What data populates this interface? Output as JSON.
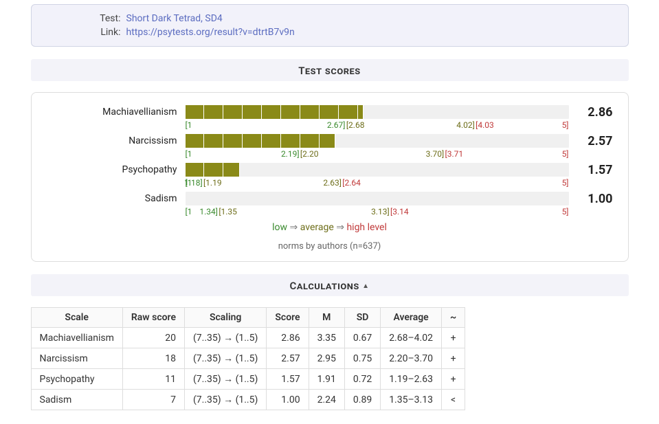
{
  "info": {
    "test_label": "Test:",
    "test_name": "Short Dark Tetrad, SD4",
    "link_label": "Link:",
    "link_url": "https://psytests.org/result?v=dtrtB7v9n"
  },
  "sections": {
    "scores_title": "Test scores",
    "calc_title": "Calculations"
  },
  "scale": {
    "min": 1,
    "max": 5
  },
  "colors": {
    "bar_normal": "#8a8a18",
    "bar_low": "#3a8a2e",
    "track": "#f0f0f0",
    "low_text": "#3a8a2e",
    "avg_text": "#6e6e1a",
    "high_text": "#c03a3a"
  },
  "scores": [
    {
      "name": "Machiavellianism",
      "value": 2.86,
      "zone": "avg",
      "bounds": {
        "low_hi": 2.67,
        "avg_lo": 2.68,
        "avg_hi": 4.02,
        "high_lo": 4.03
      }
    },
    {
      "name": "Narcissism",
      "value": 2.57,
      "zone": "avg",
      "bounds": {
        "low_hi": 2.19,
        "avg_lo": 2.2,
        "avg_hi": 3.7,
        "high_lo": 3.71
      }
    },
    {
      "name": "Psychopathy",
      "value": 1.57,
      "zone": "avg",
      "bounds": {
        "low_hi": 1.18,
        "avg_lo": 1.19,
        "avg_hi": 2.63,
        "high_lo": 2.64
      }
    },
    {
      "name": "Sadism",
      "value": 1.0,
      "zone": "low",
      "bounds": {
        "low_hi": 1.34,
        "avg_lo": 1.35,
        "avg_hi": 3.13,
        "high_lo": 3.14
      }
    }
  ],
  "legend": {
    "low": "low",
    "avg": "average",
    "high": "high level",
    "arrow": "⇒"
  },
  "norms_note": "norms by authors (n=637)",
  "calc": {
    "headers": [
      "Scale",
      "Raw score",
      "Scaling",
      "Score",
      "M",
      "SD",
      "Average",
      "~"
    ],
    "rows": [
      {
        "scale": "Machiavellianism",
        "raw": 20,
        "scaling": "(7..35) → (1..5)",
        "score": "2.86",
        "m": "3.35",
        "sd": "0.67",
        "avg": "2.68–4.02",
        "sym": "+"
      },
      {
        "scale": "Narcissism",
        "raw": 18,
        "scaling": "(7..35) → (1..5)",
        "score": "2.57",
        "m": "2.95",
        "sd": "0.75",
        "avg": "2.20–3.70",
        "sym": "+"
      },
      {
        "scale": "Psychopathy",
        "raw": 11,
        "scaling": "(7..35) → (1..5)",
        "score": "1.57",
        "m": "1.91",
        "sd": "0.72",
        "avg": "1.19–2.63",
        "sym": "+"
      },
      {
        "scale": "Sadism",
        "raw": 7,
        "scaling": "(7..35) → (1..5)",
        "score": "1.00",
        "m": "2.24",
        "sd": "0.89",
        "avg": "1.35–3.13",
        "sym": "<"
      }
    ]
  }
}
